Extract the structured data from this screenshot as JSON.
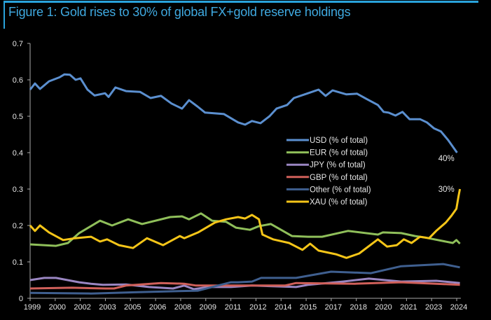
{
  "chart_data": {
    "type": "line",
    "title": "Figure 1: Gold rises to 30% of global FX+gold reserve holdings",
    "xlabel": "",
    "ylabel": "",
    "xlim": [
      1999,
      2024.75
    ],
    "ylim": [
      0,
      0.7
    ],
    "yticks": [
      "0",
      "0.1",
      "0.2",
      "0.3",
      "0.4",
      "0.5",
      "0.6",
      "0.7"
    ],
    "xtick_labels": [
      "1999",
      "2000",
      "2002",
      "2003",
      "2005",
      "2006",
      "2008",
      "2009",
      "2011",
      "2012",
      "2014",
      "2015",
      "2017",
      "2018",
      "2020",
      "2021",
      "2023",
      "2024"
    ],
    "xtick_step_years": 1.5,
    "grid": false,
    "legend_position": "center-right",
    "annotations": [
      {
        "text": "40%",
        "x": 2023.4,
        "y": 0.385
      },
      {
        "text": "30%",
        "x": 2023.4,
        "y": 0.3
      }
    ],
    "series": [
      {
        "name": "USD (% of total)",
        "color": "#5b8fcf",
        "points": [
          [
            1999.0,
            0.573
          ],
          [
            1999.29,
            0.59
          ],
          [
            1999.59,
            0.575
          ],
          [
            2000.13,
            0.596
          ],
          [
            2000.76,
            0.607
          ],
          [
            2001.05,
            0.615
          ],
          [
            2001.38,
            0.614
          ],
          [
            2001.72,
            0.6
          ],
          [
            2002.01,
            0.604
          ],
          [
            2002.43,
            0.573
          ],
          [
            2002.85,
            0.557
          ],
          [
            2003.48,
            0.563
          ],
          [
            2003.69,
            0.553
          ],
          [
            2004.1,
            0.579
          ],
          [
            2004.73,
            0.569
          ],
          [
            2005.57,
            0.567
          ],
          [
            2006.2,
            0.55
          ],
          [
            2006.82,
            0.556
          ],
          [
            2007.45,
            0.535
          ],
          [
            2008.08,
            0.521
          ],
          [
            2008.5,
            0.544
          ],
          [
            2009.0,
            0.527
          ],
          [
            2009.46,
            0.51
          ],
          [
            2010.59,
            0.506
          ],
          [
            2011.43,
            0.483
          ],
          [
            2011.85,
            0.477
          ],
          [
            2012.26,
            0.487
          ],
          [
            2012.77,
            0.481
          ],
          [
            2013.31,
            0.5
          ],
          [
            2013.73,
            0.521
          ],
          [
            2014.36,
            0.531
          ],
          [
            2014.77,
            0.55
          ],
          [
            2015.61,
            0.563
          ],
          [
            2016.24,
            0.573
          ],
          [
            2016.66,
            0.556
          ],
          [
            2017.08,
            0.571
          ],
          [
            2017.91,
            0.56
          ],
          [
            2018.54,
            0.562
          ],
          [
            2019.17,
            0.546
          ],
          [
            2019.79,
            0.531
          ],
          [
            2020.13,
            0.512
          ],
          [
            2020.42,
            0.51
          ],
          [
            2020.84,
            0.502
          ],
          [
            2021.26,
            0.512
          ],
          [
            2021.68,
            0.492
          ],
          [
            2022.31,
            0.492
          ],
          [
            2022.72,
            0.483
          ],
          [
            2023.14,
            0.467
          ],
          [
            2023.56,
            0.458
          ],
          [
            2023.98,
            0.435
          ],
          [
            2024.52,
            0.4
          ]
        ]
      },
      {
        "name": "EUR (% of total)",
        "color": "#8fbf5a",
        "points": [
          [
            1999.0,
            0.148
          ],
          [
            2000.55,
            0.144
          ],
          [
            2001.26,
            0.152
          ],
          [
            2001.93,
            0.179
          ],
          [
            2003.18,
            0.213
          ],
          [
            2003.9,
            0.2
          ],
          [
            2004.86,
            0.217
          ],
          [
            2005.69,
            0.204
          ],
          [
            2007.37,
            0.223
          ],
          [
            2008.08,
            0.225
          ],
          [
            2008.5,
            0.217
          ],
          [
            2009.21,
            0.233
          ],
          [
            2009.88,
            0.213
          ],
          [
            2010.72,
            0.21
          ],
          [
            2011.3,
            0.194
          ],
          [
            2012.14,
            0.188
          ],
          [
            2012.68,
            0.198
          ],
          [
            2013.39,
            0.204
          ],
          [
            2014.65,
            0.171
          ],
          [
            2015.61,
            0.169
          ],
          [
            2016.45,
            0.169
          ],
          [
            2018.0,
            0.185
          ],
          [
            2019.79,
            0.175
          ],
          [
            2020.09,
            0.181
          ],
          [
            2021.18,
            0.179
          ],
          [
            2022.01,
            0.171
          ],
          [
            2022.6,
            0.167
          ],
          [
            2024.27,
            0.152
          ],
          [
            2024.48,
            0.16
          ],
          [
            2024.69,
            0.15
          ]
        ]
      },
      {
        "name": "JPY (% of total)",
        "color": "#9a86c2",
        "points": [
          [
            1999.0,
            0.05
          ],
          [
            1999.84,
            0.056
          ],
          [
            2000.55,
            0.056
          ],
          [
            2001.93,
            0.044
          ],
          [
            2002.64,
            0.04
          ],
          [
            2003.35,
            0.037
          ],
          [
            2004.73,
            0.038
          ],
          [
            2006.11,
            0.031
          ],
          [
            2007.54,
            0.027
          ],
          [
            2008.21,
            0.035
          ],
          [
            2008.79,
            0.025
          ],
          [
            2009.63,
            0.031
          ],
          [
            2011.01,
            0.031
          ],
          [
            2012.26,
            0.035
          ],
          [
            2014.9,
            0.031
          ],
          [
            2015.61,
            0.037
          ],
          [
            2017.7,
            0.046
          ],
          [
            2019.25,
            0.054
          ],
          [
            2021.18,
            0.046
          ],
          [
            2023.27,
            0.048
          ],
          [
            2024.69,
            0.042
          ]
        ]
      },
      {
        "name": "GBP (% of total)",
        "color": "#d0605a",
        "points": [
          [
            1999.0,
            0.027
          ],
          [
            2001.5,
            0.029
          ],
          [
            2003.5,
            0.027
          ],
          [
            2004.02,
            0.027
          ],
          [
            2004.73,
            0.035
          ],
          [
            2006.82,
            0.042
          ],
          [
            2008.21,
            0.04
          ],
          [
            2008.92,
            0.035
          ],
          [
            2010.3,
            0.035
          ],
          [
            2012.26,
            0.035
          ],
          [
            2014.23,
            0.035
          ],
          [
            2014.9,
            0.042
          ],
          [
            2018.41,
            0.04
          ],
          [
            2021.18,
            0.044
          ],
          [
            2023.27,
            0.04
          ],
          [
            2024.69,
            0.037
          ]
        ]
      },
      {
        "name": "Other (% of total)",
        "color": "#3f5f8f",
        "points": [
          [
            1999.0,
            0.015
          ],
          [
            2002.64,
            0.013
          ],
          [
            2005.44,
            0.017
          ],
          [
            2009.04,
            0.021
          ],
          [
            2011.01,
            0.044
          ],
          [
            2012.26,
            0.046
          ],
          [
            2011.43,
            0.044
          ],
          [
            2012.81,
            0.056
          ],
          [
            2014.9,
            0.056
          ],
          [
            2016.99,
            0.073
          ],
          [
            2019.38,
            0.069
          ],
          [
            2021.18,
            0.088
          ],
          [
            2023.69,
            0.094
          ],
          [
            2024.69,
            0.085
          ]
        ]
      },
      {
        "name": "XAU (% of total)",
        "color": "#f5c518",
        "points": [
          [
            1999.0,
            0.2
          ],
          [
            1999.29,
            0.185
          ],
          [
            1999.59,
            0.2
          ],
          [
            2000.13,
            0.181
          ],
          [
            2000.97,
            0.16
          ],
          [
            2001.68,
            0.165
          ],
          [
            2002.64,
            0.169
          ],
          [
            2003.18,
            0.156
          ],
          [
            2003.6,
            0.162
          ],
          [
            2004.31,
            0.146
          ],
          [
            2005.15,
            0.138
          ],
          [
            2005.99,
            0.165
          ],
          [
            2006.95,
            0.146
          ],
          [
            2007.95,
            0.171
          ],
          [
            2008.21,
            0.165
          ],
          [
            2009.04,
            0.181
          ],
          [
            2010.05,
            0.208
          ],
          [
            2010.72,
            0.217
          ],
          [
            2011.43,
            0.223
          ],
          [
            2011.85,
            0.219
          ],
          [
            2012.26,
            0.229
          ],
          [
            2012.68,
            0.217
          ],
          [
            2012.89,
            0.175
          ],
          [
            2013.52,
            0.162
          ],
          [
            2014.48,
            0.152
          ],
          [
            2015.28,
            0.133
          ],
          [
            2015.74,
            0.15
          ],
          [
            2016.24,
            0.131
          ],
          [
            2017.28,
            0.121
          ],
          [
            2017.91,
            0.111
          ],
          [
            2018.67,
            0.123
          ],
          [
            2019.79,
            0.162
          ],
          [
            2020.34,
            0.142
          ],
          [
            2020.92,
            0.146
          ],
          [
            2021.34,
            0.162
          ],
          [
            2021.8,
            0.152
          ],
          [
            2022.31,
            0.169
          ],
          [
            2022.85,
            0.165
          ],
          [
            2023.27,
            0.185
          ],
          [
            2023.85,
            0.208
          ],
          [
            2024.19,
            0.227
          ],
          [
            2024.48,
            0.246
          ],
          [
            2024.61,
            0.281
          ],
          [
            2024.69,
            0.3
          ]
        ]
      }
    ]
  }
}
